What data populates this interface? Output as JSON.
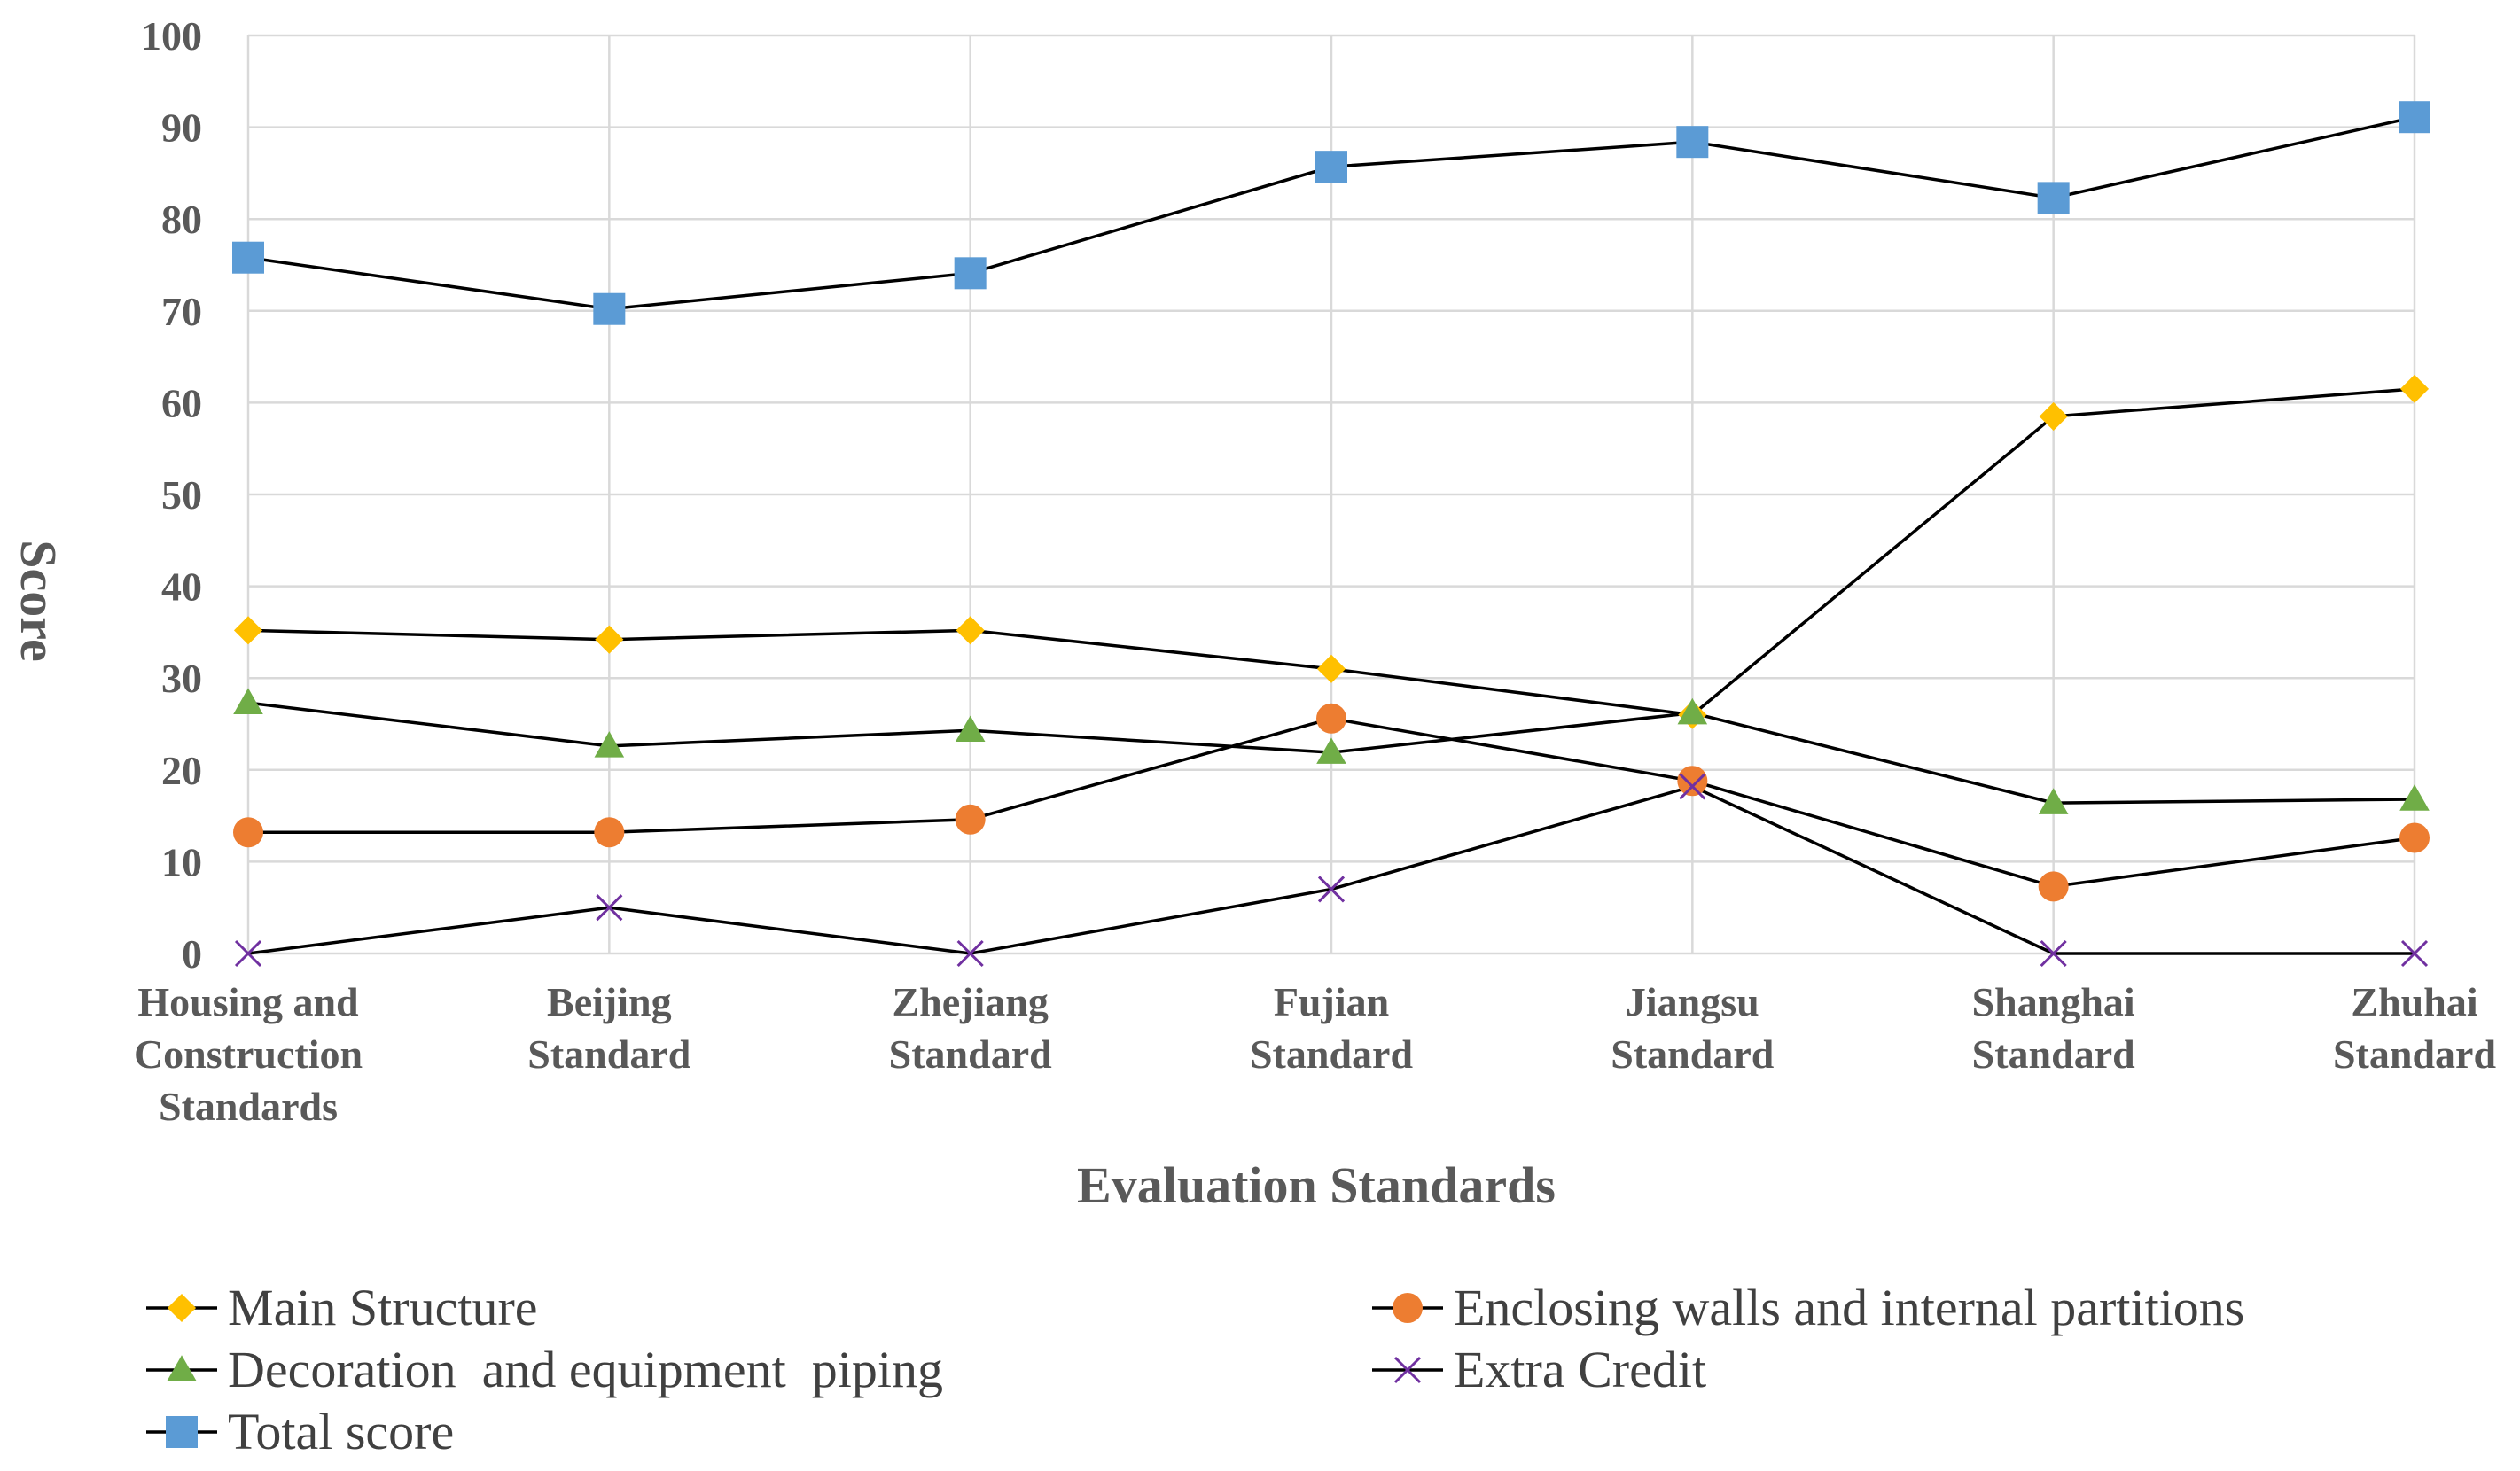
{
  "chart_data": {
    "type": "line",
    "title": "",
    "xlabel": "Evaluation Standards",
    "ylabel": "Score",
    "ylim": [
      0,
      100
    ],
    "yticks": [
      0,
      10,
      20,
      30,
      40,
      50,
      60,
      70,
      80,
      90,
      100
    ],
    "grid": true,
    "legend_position": "bottom",
    "categories": [
      [
        "Housing and",
        "Construction",
        "Standards"
      ],
      [
        "Beijing",
        "Standard"
      ],
      [
        "Zhejiang",
        "Standard"
      ],
      [
        "Fujian",
        "Standard"
      ],
      [
        "Jiangsu",
        "Standard"
      ],
      [
        "Shanghai",
        "Standard"
      ],
      [
        "Zhuhai",
        "Standard"
      ]
    ],
    "series": [
      {
        "name": "Main Structure",
        "marker": "diamond",
        "color": "#FFC000",
        "values": [
          35.2,
          34.2,
          35.2,
          31.0,
          26.0,
          58.5,
          61.5
        ]
      },
      {
        "name": "Enclosing walls and internal partitions",
        "marker": "circle",
        "color": "#ED7D31",
        "values": [
          13.2,
          13.2,
          14.6,
          25.6,
          18.8,
          7.3,
          12.6
        ]
      },
      {
        "name": "Decoration  and equipment  piping",
        "marker": "triangle",
        "color": "#70AD47",
        "values": [
          27.3,
          22.6,
          24.3,
          21.9,
          26.2,
          16.4,
          16.8
        ]
      },
      {
        "name": "Extra Credit",
        "marker": "cross",
        "color": "#7030A0",
        "values": [
          0,
          5.0,
          0,
          7.0,
          18.2,
          0,
          0
        ]
      },
      {
        "name": "Total score",
        "marker": "square",
        "color": "#5B9BD5",
        "values": [
          75.8,
          70.2,
          74.1,
          85.7,
          88.4,
          82.3,
          91.1
        ]
      }
    ]
  }
}
